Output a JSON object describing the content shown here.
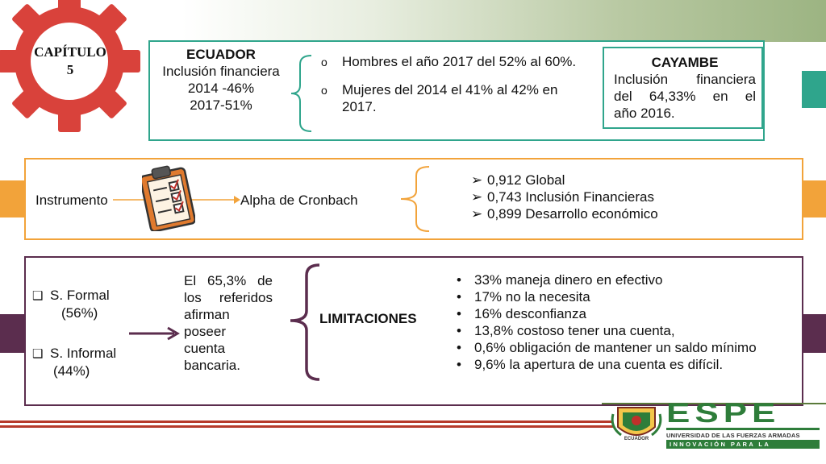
{
  "chapter": {
    "line1": "CAPÍTULO",
    "line2": "5"
  },
  "ecuador": {
    "title": "ECUADOR",
    "line1": "Inclusión financiera",
    "line2": "2014 -46%",
    "line3": "2017-51%",
    "bullets": [
      "Hombres el año 2017 del 52% al 60%.",
      "Mujeres del 2014 el 41% al 42% en 2017."
    ]
  },
  "cayambe": {
    "title": "CAYAMBE",
    "text": [
      "Inclusión financiera",
      "del 64,33% en el",
      "año 2016."
    ]
  },
  "instrument": {
    "label": "Instrumento",
    "method": "Alpha de Cronbach",
    "icon": "clipboard-checklist-icon",
    "results": [
      "0,912 Global",
      "0,743 Inclusión Financieras",
      "0,899 Desarrollo económico"
    ]
  },
  "sectors": {
    "formal": "S. Formal",
    "formal_pct": "(56%)",
    "informal": "S. Informal",
    "informal_pct": "(44%)",
    "statement": [
      "El 65,3% de",
      "los referidos",
      "afirman",
      "poseer",
      "cuenta",
      "bancaria."
    ],
    "limitations_title": "LIMITACIONES",
    "limitations": [
      "33% maneja dinero en efectivo",
      "17% no la necesita",
      "16% desconfianza",
      "13,8% costoso tener una cuenta,",
      "0,6% obligación de mantener un saldo mínimo",
      "9,6% la apertura de una cuenta es difícil."
    ]
  },
  "logo": {
    "name": "ESPE",
    "subtitle": "UNIVERSIDAD DE LAS FUERZAS ARMADAS",
    "slogan": "INNOVACIÓN PARA LA EXCELENCIA",
    "seal_text": "ECUADOR"
  },
  "colors": {
    "teal": "#2fa58c",
    "orange": "#f2a33a",
    "purple": "#5b2d4e",
    "gear": "#d9423b",
    "espe_green": "#2e7d3a"
  }
}
